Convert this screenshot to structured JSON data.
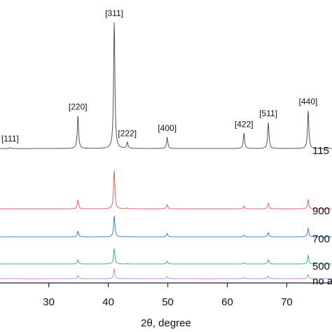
{
  "chart_data": {
    "type": "xrd",
    "xlabel": "2θ, degree",
    "xlim": [
      21.8,
      77.6
    ],
    "xticks": [
      30,
      40,
      50,
      60,
      70
    ],
    "ylim": [
      0,
      100
    ],
    "peak_positions": [
      23.5,
      34.9,
      41.0,
      43.2,
      49.9,
      62.8,
      66.9,
      73.6
    ],
    "peak_labels": [
      "[111]",
      "[220]",
      "[311]",
      "[222]",
      "[400]",
      "[422]",
      "[511]",
      "[440]"
    ],
    "series": [
      {
        "name": "115",
        "color": "#555555",
        "offset": 47.5,
        "peaks": [
          0.3,
          11.6,
          44.6,
          2.2,
          4.0,
          5.4,
          9.2,
          13.4
        ]
      },
      {
        "name": "900",
        "color": "#e06666",
        "offset": 26.2,
        "peaks": [
          0.1,
          3.2,
          13.6,
          0.3,
          1.5,
          1.0,
          2.0,
          3.2
        ]
      },
      {
        "name": "700",
        "color": "#3d7fd6",
        "offset": 16.3,
        "peaks": [
          0.1,
          2.0,
          7.4,
          0.2,
          1.2,
          0.6,
          1.5,
          3.0
        ]
      },
      {
        "name": "500",
        "color": "#3cb878",
        "offset": 6.7,
        "peaks": [
          0.1,
          1.5,
          5.4,
          0.2,
          1.0,
          0.5,
          1.5,
          3.0
        ]
      },
      {
        "name": "no a",
        "color": "#c58ad8",
        "offset": 1.5,
        "peaks": [
          0.1,
          1.2,
          3.5,
          0.2,
          0.8,
          0.4,
          1.0,
          1.5
        ]
      }
    ]
  }
}
